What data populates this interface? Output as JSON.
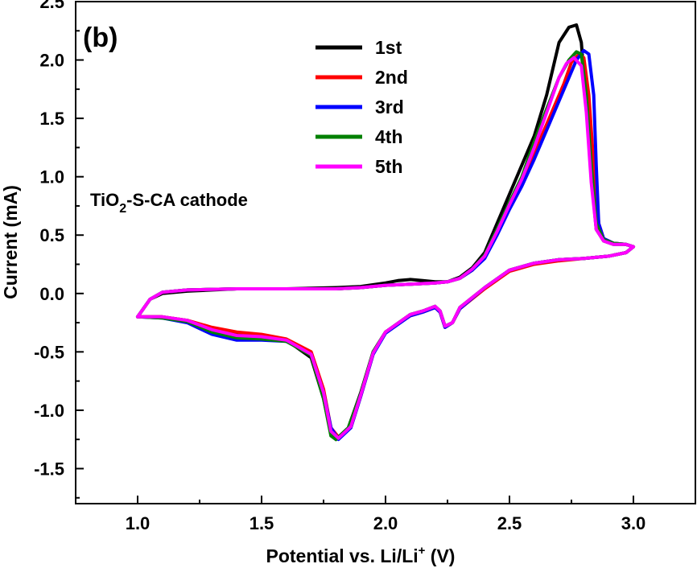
{
  "chart_data": {
    "type": "line",
    "panel_label": "(b)",
    "annotation": {
      "main": "TiO",
      "sub": "2",
      "rest": "-S-CA cathode"
    },
    "xlabel": {
      "main": "Potential vs. Li/Li",
      "sup": "+",
      "rest": " (V)"
    },
    "ylabel": "Current (mA)",
    "xlim": [
      0.75,
      3.25
    ],
    "ylim": [
      -1.8,
      2.5
    ],
    "x_ticks": [
      "1.0",
      "1.5",
      "2.0",
      "2.5",
      "3.0"
    ],
    "x_tick_values": [
      1.0,
      1.5,
      2.0,
      2.5,
      3.0
    ],
    "y_ticks": [
      "2.5",
      "2.0",
      "1.5",
      "1.0",
      "0.5",
      "0.0",
      "-0.5",
      "-1.0",
      "-1.5"
    ],
    "y_tick_values": [
      2.5,
      2.0,
      1.5,
      1.0,
      0.5,
      0.0,
      -0.5,
      -1.0,
      -1.5
    ],
    "legend_position": "top-center",
    "grid": false,
    "series": [
      {
        "name": "1st",
        "color": "#000000",
        "points": [
          [
            1.0,
            -0.2
          ],
          [
            1.1,
            -0.2
          ],
          [
            1.2,
            -0.23
          ],
          [
            1.3,
            -0.3
          ],
          [
            1.4,
            -0.35
          ],
          [
            1.5,
            -0.36
          ],
          [
            1.6,
            -0.4
          ],
          [
            1.7,
            -0.55
          ],
          [
            1.75,
            -0.9
          ],
          [
            1.78,
            -1.2
          ],
          [
            1.8,
            -1.25
          ],
          [
            1.85,
            -1.15
          ],
          [
            1.9,
            -0.85
          ],
          [
            1.95,
            -0.5
          ],
          [
            2.0,
            -0.33
          ],
          [
            2.1,
            -0.18
          ],
          [
            2.15,
            -0.15
          ],
          [
            2.2,
            -0.11
          ],
          [
            2.22,
            -0.15
          ],
          [
            2.24,
            -0.28
          ],
          [
            2.27,
            -0.25
          ],
          [
            2.3,
            -0.12
          ],
          [
            2.4,
            0.05
          ],
          [
            2.5,
            0.2
          ],
          [
            2.6,
            0.26
          ],
          [
            2.7,
            0.29
          ],
          [
            2.8,
            0.3
          ],
          [
            2.9,
            0.32
          ],
          [
            2.97,
            0.35
          ],
          [
            3.0,
            0.4
          ],
          [
            2.97,
            0.42
          ],
          [
            2.92,
            0.42
          ],
          [
            2.88,
            0.45
          ],
          [
            2.85,
            0.55
          ],
          [
            2.83,
            1.0
          ],
          [
            2.81,
            1.6
          ],
          [
            2.79,
            2.15
          ],
          [
            2.77,
            2.3
          ],
          [
            2.74,
            2.28
          ],
          [
            2.7,
            2.15
          ],
          [
            2.65,
            1.7
          ],
          [
            2.6,
            1.35
          ],
          [
            2.55,
            1.1
          ],
          [
            2.5,
            0.85
          ],
          [
            2.45,
            0.6
          ],
          [
            2.4,
            0.35
          ],
          [
            2.35,
            0.22
          ],
          [
            2.3,
            0.14
          ],
          [
            2.25,
            0.1
          ],
          [
            2.2,
            0.1
          ],
          [
            2.15,
            0.11
          ],
          [
            2.1,
            0.12
          ],
          [
            2.05,
            0.11
          ],
          [
            2.0,
            0.09
          ],
          [
            1.9,
            0.06
          ],
          [
            1.8,
            0.05
          ],
          [
            1.6,
            0.04
          ],
          [
            1.4,
            0.04
          ],
          [
            1.2,
            0.02
          ],
          [
            1.1,
            0.0
          ],
          [
            1.05,
            -0.05
          ],
          [
            1.0,
            -0.2
          ]
        ]
      },
      {
        "name": "2nd",
        "color": "#ff0000",
        "points": [
          [
            1.0,
            -0.2
          ],
          [
            1.1,
            -0.2
          ],
          [
            1.2,
            -0.23
          ],
          [
            1.3,
            -0.29
          ],
          [
            1.4,
            -0.33
          ],
          [
            1.5,
            -0.35
          ],
          [
            1.6,
            -0.39
          ],
          [
            1.7,
            -0.5
          ],
          [
            1.75,
            -0.82
          ],
          [
            1.78,
            -1.15
          ],
          [
            1.81,
            -1.23
          ],
          [
            1.86,
            -1.15
          ],
          [
            1.9,
            -0.88
          ],
          [
            1.95,
            -0.52
          ],
          [
            2.0,
            -0.33
          ],
          [
            2.1,
            -0.19
          ],
          [
            2.15,
            -0.16
          ],
          [
            2.2,
            -0.12
          ],
          [
            2.22,
            -0.16
          ],
          [
            2.24,
            -0.29
          ],
          [
            2.27,
            -0.25
          ],
          [
            2.3,
            -0.13
          ],
          [
            2.4,
            0.04
          ],
          [
            2.5,
            0.19
          ],
          [
            2.6,
            0.25
          ],
          [
            2.7,
            0.28
          ],
          [
            2.8,
            0.3
          ],
          [
            2.9,
            0.32
          ],
          [
            2.97,
            0.35
          ],
          [
            3.0,
            0.4
          ],
          [
            2.97,
            0.42
          ],
          [
            2.92,
            0.43
          ],
          [
            2.88,
            0.47
          ],
          [
            2.86,
            0.6
          ],
          [
            2.84,
            1.1
          ],
          [
            2.82,
            1.7
          ],
          [
            2.8,
            2.02
          ],
          [
            2.78,
            2.05
          ],
          [
            2.75,
            1.98
          ],
          [
            2.72,
            1.8
          ],
          [
            2.67,
            1.55
          ],
          [
            2.6,
            1.2
          ],
          [
            2.55,
            0.95
          ],
          [
            2.5,
            0.75
          ],
          [
            2.45,
            0.52
          ],
          [
            2.4,
            0.32
          ],
          [
            2.35,
            0.2
          ],
          [
            2.3,
            0.13
          ],
          [
            2.25,
            0.1
          ],
          [
            2.2,
            0.09
          ],
          [
            2.1,
            0.08
          ],
          [
            2.0,
            0.07
          ],
          [
            1.9,
            0.05
          ],
          [
            1.8,
            0.04
          ],
          [
            1.6,
            0.04
          ],
          [
            1.4,
            0.04
          ],
          [
            1.2,
            0.03
          ],
          [
            1.1,
            0.01
          ],
          [
            1.05,
            -0.05
          ],
          [
            1.0,
            -0.2
          ]
        ]
      },
      {
        "name": "3rd",
        "color": "#0000ff",
        "points": [
          [
            1.0,
            -0.2
          ],
          [
            1.1,
            -0.21
          ],
          [
            1.2,
            -0.25
          ],
          [
            1.3,
            -0.35
          ],
          [
            1.4,
            -0.4
          ],
          [
            1.5,
            -0.4
          ],
          [
            1.6,
            -0.41
          ],
          [
            1.7,
            -0.52
          ],
          [
            1.75,
            -0.85
          ],
          [
            1.78,
            -1.15
          ],
          [
            1.81,
            -1.25
          ],
          [
            1.86,
            -1.15
          ],
          [
            1.9,
            -0.88
          ],
          [
            1.95,
            -0.52
          ],
          [
            2.0,
            -0.34
          ],
          [
            2.1,
            -0.19
          ],
          [
            2.15,
            -0.16
          ],
          [
            2.2,
            -0.12
          ],
          [
            2.22,
            -0.16
          ],
          [
            2.24,
            -0.29
          ],
          [
            2.27,
            -0.25
          ],
          [
            2.3,
            -0.13
          ],
          [
            2.4,
            0.05
          ],
          [
            2.5,
            0.2
          ],
          [
            2.6,
            0.26
          ],
          [
            2.7,
            0.29
          ],
          [
            2.8,
            0.3
          ],
          [
            2.9,
            0.32
          ],
          [
            2.97,
            0.35
          ],
          [
            3.0,
            0.4
          ],
          [
            2.97,
            0.42
          ],
          [
            2.92,
            0.43
          ],
          [
            2.88,
            0.47
          ],
          [
            2.86,
            0.6
          ],
          [
            2.85,
            1.1
          ],
          [
            2.84,
            1.7
          ],
          [
            2.82,
            2.05
          ],
          [
            2.8,
            2.08
          ],
          [
            2.77,
            2.0
          ],
          [
            2.72,
            1.75
          ],
          [
            2.67,
            1.5
          ],
          [
            2.6,
            1.15
          ],
          [
            2.55,
            0.92
          ],
          [
            2.5,
            0.72
          ],
          [
            2.45,
            0.5
          ],
          [
            2.4,
            0.3
          ],
          [
            2.35,
            0.2
          ],
          [
            2.3,
            0.13
          ],
          [
            2.25,
            0.1
          ],
          [
            2.2,
            0.09
          ],
          [
            2.1,
            0.08
          ],
          [
            2.0,
            0.07
          ],
          [
            1.9,
            0.05
          ],
          [
            1.8,
            0.04
          ],
          [
            1.6,
            0.04
          ],
          [
            1.4,
            0.04
          ],
          [
            1.2,
            0.03
          ],
          [
            1.1,
            0.01
          ],
          [
            1.05,
            -0.05
          ],
          [
            1.0,
            -0.2
          ]
        ]
      },
      {
        "name": "4th",
        "color": "#008000",
        "points": [
          [
            1.0,
            -0.2
          ],
          [
            1.1,
            -0.21
          ],
          [
            1.2,
            -0.24
          ],
          [
            1.3,
            -0.33
          ],
          [
            1.4,
            -0.38
          ],
          [
            1.5,
            -0.39
          ],
          [
            1.6,
            -0.41
          ],
          [
            1.7,
            -0.53
          ],
          [
            1.75,
            -0.9
          ],
          [
            1.78,
            -1.22
          ],
          [
            1.8,
            -1.25
          ],
          [
            1.85,
            -1.15
          ],
          [
            1.9,
            -0.86
          ],
          [
            1.95,
            -0.5
          ],
          [
            2.0,
            -0.33
          ],
          [
            2.1,
            -0.18
          ],
          [
            2.15,
            -0.15
          ],
          [
            2.2,
            -0.11
          ],
          [
            2.22,
            -0.15
          ],
          [
            2.24,
            -0.28
          ],
          [
            2.27,
            -0.25
          ],
          [
            2.3,
            -0.12
          ],
          [
            2.4,
            0.05
          ],
          [
            2.5,
            0.2
          ],
          [
            2.6,
            0.26
          ],
          [
            2.7,
            0.29
          ],
          [
            2.8,
            0.3
          ],
          [
            2.9,
            0.32
          ],
          [
            2.97,
            0.35
          ],
          [
            3.0,
            0.4
          ],
          [
            2.97,
            0.42
          ],
          [
            2.92,
            0.43
          ],
          [
            2.88,
            0.46
          ],
          [
            2.85,
            0.6
          ],
          [
            2.83,
            1.1
          ],
          [
            2.81,
            1.7
          ],
          [
            2.79,
            2.05
          ],
          [
            2.77,
            2.07
          ],
          [
            2.74,
            2.0
          ],
          [
            2.7,
            1.85
          ],
          [
            2.65,
            1.58
          ],
          [
            2.6,
            1.3
          ],
          [
            2.55,
            1.0
          ],
          [
            2.5,
            0.78
          ],
          [
            2.45,
            0.55
          ],
          [
            2.4,
            0.33
          ],
          [
            2.35,
            0.21
          ],
          [
            2.3,
            0.13
          ],
          [
            2.25,
            0.1
          ],
          [
            2.2,
            0.09
          ],
          [
            2.1,
            0.08
          ],
          [
            2.0,
            0.07
          ],
          [
            1.9,
            0.05
          ],
          [
            1.8,
            0.04
          ],
          [
            1.6,
            0.04
          ],
          [
            1.4,
            0.04
          ],
          [
            1.2,
            0.03
          ],
          [
            1.1,
            0.01
          ],
          [
            1.05,
            -0.05
          ],
          [
            1.0,
            -0.2
          ]
        ]
      },
      {
        "name": "5th",
        "color": "#ff00ff",
        "points": [
          [
            1.0,
            -0.2
          ],
          [
            1.1,
            -0.2
          ],
          [
            1.2,
            -0.23
          ],
          [
            1.3,
            -0.31
          ],
          [
            1.4,
            -0.36
          ],
          [
            1.5,
            -0.37
          ],
          [
            1.6,
            -0.4
          ],
          [
            1.7,
            -0.52
          ],
          [
            1.75,
            -0.85
          ],
          [
            1.78,
            -1.18
          ],
          [
            1.81,
            -1.24
          ],
          [
            1.86,
            -1.14
          ],
          [
            1.9,
            -0.87
          ],
          [
            1.95,
            -0.51
          ],
          [
            2.0,
            -0.33
          ],
          [
            2.1,
            -0.18
          ],
          [
            2.15,
            -0.15
          ],
          [
            2.2,
            -0.11
          ],
          [
            2.22,
            -0.15
          ],
          [
            2.24,
            -0.28
          ],
          [
            2.27,
            -0.25
          ],
          [
            2.3,
            -0.12
          ],
          [
            2.4,
            0.05
          ],
          [
            2.5,
            0.2
          ],
          [
            2.6,
            0.26
          ],
          [
            2.7,
            0.29
          ],
          [
            2.8,
            0.3
          ],
          [
            2.9,
            0.32
          ],
          [
            2.97,
            0.35
          ],
          [
            3.0,
            0.4
          ],
          [
            2.97,
            0.42
          ],
          [
            2.92,
            0.42
          ],
          [
            2.88,
            0.45
          ],
          [
            2.85,
            0.55
          ],
          [
            2.83,
            0.95
          ],
          [
            2.81,
            1.55
          ],
          [
            2.79,
            1.95
          ],
          [
            2.76,
            2.02
          ],
          [
            2.73,
            1.97
          ],
          [
            2.7,
            1.85
          ],
          [
            2.65,
            1.55
          ],
          [
            2.6,
            1.25
          ],
          [
            2.55,
            0.98
          ],
          [
            2.5,
            0.76
          ],
          [
            2.45,
            0.53
          ],
          [
            2.4,
            0.32
          ],
          [
            2.35,
            0.21
          ],
          [
            2.3,
            0.13
          ],
          [
            2.25,
            0.1
          ],
          [
            2.2,
            0.09
          ],
          [
            2.1,
            0.08
          ],
          [
            2.0,
            0.07
          ],
          [
            1.9,
            0.05
          ],
          [
            1.8,
            0.04
          ],
          [
            1.6,
            0.04
          ],
          [
            1.4,
            0.04
          ],
          [
            1.2,
            0.03
          ],
          [
            1.1,
            0.01
          ],
          [
            1.05,
            -0.05
          ],
          [
            1.0,
            -0.2
          ]
        ]
      }
    ]
  }
}
